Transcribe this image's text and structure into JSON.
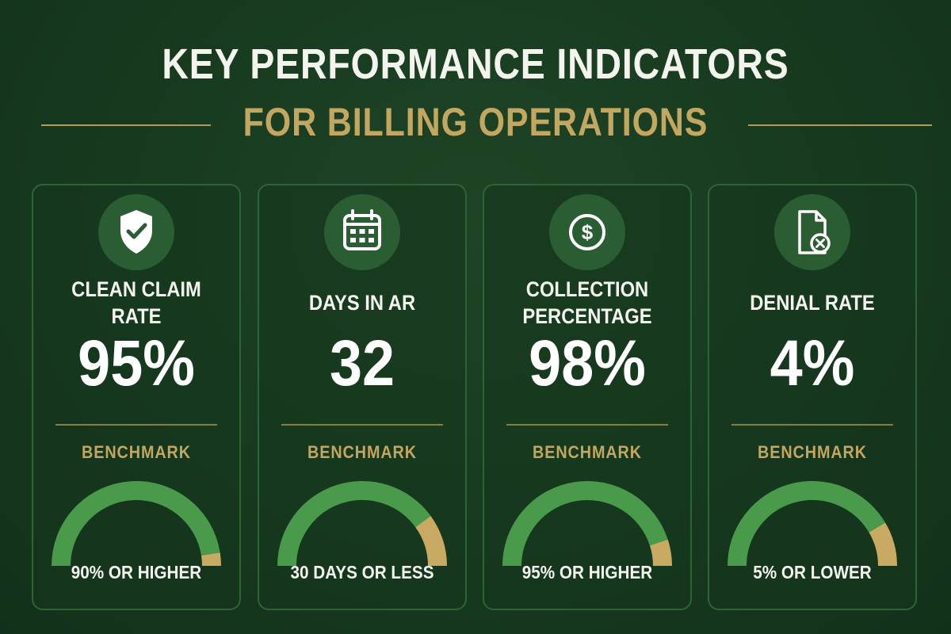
{
  "header": {
    "title": "KEY PERFORMANCE INDICATORS",
    "subtitle": "FOR BILLING OPERATIONS"
  },
  "colors": {
    "background": "#17391f",
    "gold": "#c3a660",
    "gauge_good": "#4a9a4c",
    "gauge_warn": "#c9aa62"
  },
  "kpis": [
    {
      "icon": "shield-check-icon",
      "label": "CLEAN CLAIM RATE",
      "value": "95%",
      "benchmark_label": "BENCHMARK",
      "target": "90% OR HIGHER",
      "gauge_good_fraction": 0.95
    },
    {
      "icon": "calendar-icon",
      "label": "DAYS IN AR",
      "value": "32",
      "benchmark_label": "BENCHMARK",
      "target": "30 DAYS OR LESS",
      "gauge_good_fraction": 0.8
    },
    {
      "icon": "dollar-coin-icon",
      "label": "COLLECTION PERCENTAGE",
      "value": "98%",
      "benchmark_label": "BENCHMARK",
      "target": "95% OR HIGHER",
      "gauge_good_fraction": 0.9
    },
    {
      "icon": "document-x-icon",
      "label": "DENIAL RATE",
      "value": "4%",
      "benchmark_label": "BENCHMARK",
      "target": "5% OR LOWER",
      "gauge_good_fraction": 0.83
    }
  ]
}
